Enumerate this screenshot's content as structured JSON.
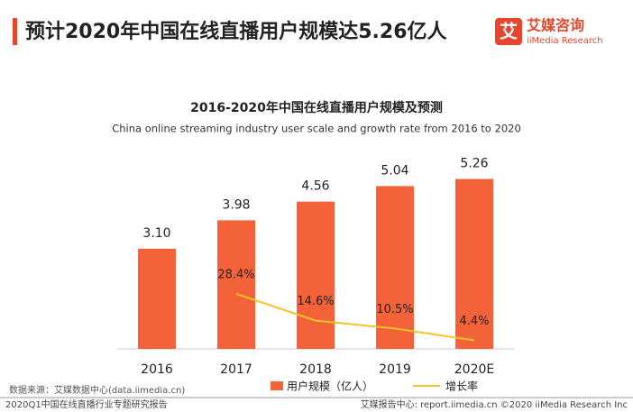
{
  "header": {
    "title": "预计2020年中国在线直播用户规模达5.26亿人"
  },
  "logo": {
    "mark": "艾",
    "name": "艾媒咨询",
    "sub": "iiMedia Research"
  },
  "chart_data": {
    "type": "bar-line",
    "title": "2016-2020年中国在线直播用户规模及预测",
    "subtitle": "China online streaming industry user scale and growth rate from 2016 to 2020",
    "categories": [
      "2016",
      "2017",
      "2018",
      "2019",
      "2020E"
    ],
    "series": [
      {
        "name": "用户规模（亿人）",
        "type": "bar",
        "color": "#f4623a",
        "values": [
          3.1,
          3.98,
          4.56,
          5.04,
          5.26
        ],
        "value_labels": [
          "3.10",
          "3.98",
          "4.56",
          "5.04",
          "5.26"
        ]
      },
      {
        "name": "增长率",
        "type": "line",
        "axis": "y2",
        "color": "#f7c325",
        "values": [
          null,
          28.4,
          14.6,
          10.5,
          4.4
        ],
        "value_labels": [
          null,
          "28.4%",
          "14.6%",
          "10.5%",
          "4.4%"
        ]
      }
    ],
    "ylim": [
      0,
      6
    ],
    "y2lim": [
      0,
      100
    ],
    "grid": false,
    "legend": "bottom"
  },
  "source": "数据来源：艾媒数据中心(data.iimedia.cn)",
  "footer": {
    "left": "2020Q1中国在线直播行业专题研究报告",
    "right": "艾媒报告中心: report.iimedia.cn  ©2020  iiMedia Research  Inc"
  }
}
